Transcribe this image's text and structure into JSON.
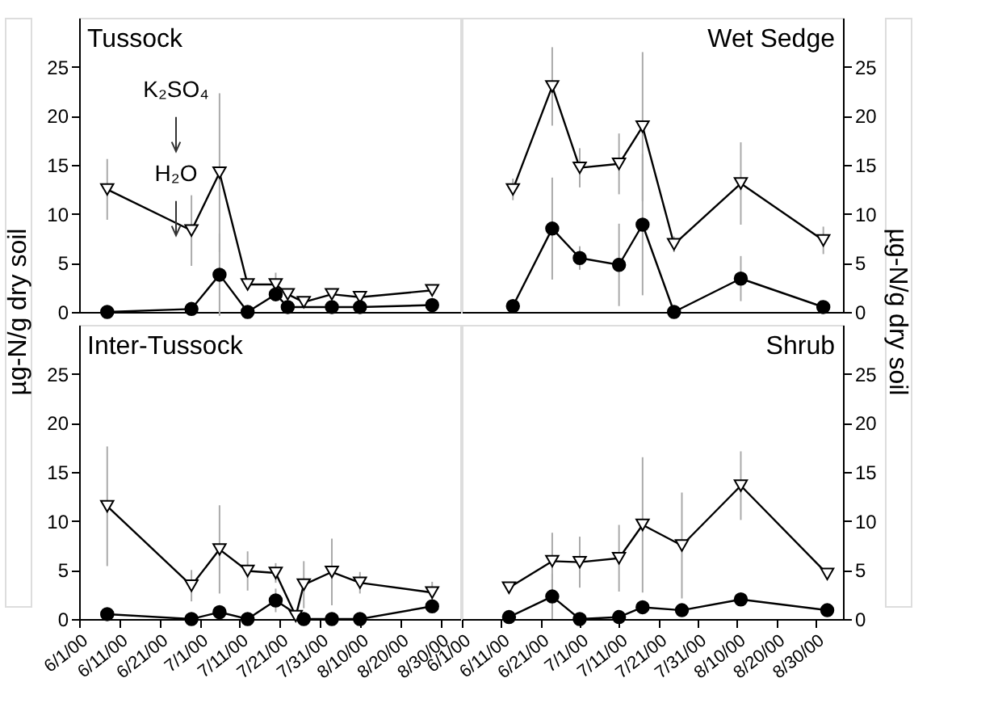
{
  "chart_data": [
    {
      "type": "line",
      "title": "Tussock",
      "ylabel": "µg-N/g dry soil",
      "tick_labels": "y",
      "xlim": [
        "2000-06-01",
        "2000-09-04"
      ],
      "ylim": [
        0,
        30
      ],
      "yticks": [
        0,
        5,
        10,
        15,
        20,
        25
      ],
      "annotations": [
        "K₂SO₄",
        "H₂O"
      ],
      "series": [
        {
          "color": "#000000",
          "marker": "triangle",
          "x": [
            "2000-06-08",
            "2000-06-29",
            "2000-07-06",
            "2000-07-13",
            "2000-07-20",
            "2000-07-23",
            "2000-07-27",
            "2000-08-03",
            "2000-08-10",
            "2000-08-28"
          ],
          "values": [
            12.5,
            8.3,
            14.2,
            2.8,
            2.8,
            1.8,
            1.0,
            1.8,
            1.5,
            2.2
          ],
          "errors": [
            3.1,
            3.6,
            8.1,
            null,
            1.2,
            null,
            null,
            null,
            null,
            null
          ]
        },
        {
          "color": "#000000",
          "marker": "circle",
          "x": [
            "2000-06-08",
            "2000-06-29",
            "2000-07-06",
            "2000-07-13",
            "2000-07-20",
            "2000-07-23",
            "2000-08-03",
            "2000-08-10",
            "2000-08-28"
          ],
          "values": [
            0,
            0.3,
            3.8,
            0,
            1.8,
            0.5,
            0.5,
            0.5,
            0.7
          ],
          "errors": [
            null,
            null,
            4.2,
            null,
            null,
            null,
            null,
            null,
            null
          ]
        }
      ]
    },
    {
      "type": "line",
      "title": "Wet Sedge",
      "ylabel": "µg-N/g dry soil",
      "tick_labels": "y",
      "xlim": [
        "2000-06-01",
        "2000-09-06"
      ],
      "ylim": [
        0,
        30
      ],
      "yticks": [
        0,
        5,
        10,
        15,
        20,
        25
      ],
      "series": [
        {
          "color": "#000000",
          "marker": "triangle",
          "x": [
            "2000-06-14",
            "2000-06-24",
            "2000-07-01",
            "2000-07-11",
            "2000-07-17",
            "2000-07-25",
            "2000-08-11",
            "2000-09-01"
          ],
          "values": [
            12.5,
            23.0,
            14.7,
            15.1,
            18.9,
            6.9,
            13.1,
            7.3
          ],
          "errors": [
            1.1,
            4.0,
            2.0,
            3.1,
            7.6,
            0.8,
            4.2,
            1.4
          ]
        },
        {
          "color": "#000000",
          "marker": "circle",
          "x": [
            "2000-06-14",
            "2000-06-24",
            "2000-07-01",
            "2000-07-11",
            "2000-07-17",
            "2000-07-25",
            "2000-08-11",
            "2000-09-01"
          ],
          "values": [
            0.6,
            8.5,
            5.5,
            4.8,
            8.9,
            0,
            3.4,
            0.5
          ],
          "errors": [
            null,
            5.2,
            1.2,
            4.2,
            7.2,
            null,
            2.3,
            null
          ]
        }
      ]
    },
    {
      "type": "line",
      "title": "Inter-Tussock",
      "xlim": [
        "2000-06-01",
        "2000-09-04"
      ],
      "ylim": [
        0,
        30
      ],
      "yticks": [
        0,
        5,
        10,
        15,
        20,
        25
      ],
      "xticks": [
        {
          "value": "2000-06-01",
          "label": "6/1/00"
        },
        {
          "value": "2000-06-11",
          "label": "6/11/00"
        },
        {
          "value": "2000-06-21",
          "label": "6/21/00"
        },
        {
          "value": "2000-07-01",
          "label": "7/1/00"
        },
        {
          "value": "2000-07-11",
          "label": "7/11/00"
        },
        {
          "value": "2000-07-21",
          "label": "7/21/00"
        },
        {
          "value": "2000-07-31",
          "label": "7/31/00"
        },
        {
          "value": "2000-08-10",
          "label": "8/10/00"
        },
        {
          "value": "2000-08-20",
          "label": "8/20/00"
        },
        {
          "value": "2000-08-30",
          "label": "8/30/00"
        }
      ],
      "series": [
        {
          "color": "#000000",
          "marker": "triangle",
          "x": [
            "2000-06-08",
            "2000-06-29",
            "2000-07-06",
            "2000-07-13",
            "2000-07-20",
            "2000-07-25",
            "2000-07-27",
            "2000-08-03",
            "2000-08-10",
            "2000-08-28"
          ],
          "values": [
            11.5,
            3.4,
            7.1,
            4.9,
            4.7,
            0.3,
            3.5,
            4.8,
            3.7,
            2.7
          ],
          "errors": [
            6.1,
            1.6,
            4.5,
            2.0,
            1.0,
            null,
            2.4,
            3.4,
            1.1,
            1.1
          ]
        },
        {
          "color": "#000000",
          "marker": "circle",
          "x": [
            "2000-06-08",
            "2000-06-29",
            "2000-07-06",
            "2000-07-13",
            "2000-07-20",
            "2000-07-27",
            "2000-08-03",
            "2000-08-10",
            "2000-08-28"
          ],
          "values": [
            0.5,
            0,
            0.7,
            0,
            1.9,
            0,
            0,
            0,
            1.3
          ],
          "errors": [
            null,
            null,
            null,
            null,
            1.2,
            null,
            null,
            null,
            null
          ]
        }
      ]
    },
    {
      "type": "line",
      "title": "Shrub",
      "xlim": [
        "2000-06-01",
        "2000-09-06"
      ],
      "ylim": [
        0,
        30
      ],
      "yticks": [
        0,
        5,
        10,
        15,
        20,
        25
      ],
      "xticks": [
        {
          "value": "2000-06-01",
          "label": "6/1/00"
        },
        {
          "value": "2000-06-11",
          "label": "6/11/00"
        },
        {
          "value": "2000-06-21",
          "label": "6/21/00"
        },
        {
          "value": "2000-07-01",
          "label": "7/1/00"
        },
        {
          "value": "2000-07-11",
          "label": "7/11/00"
        },
        {
          "value": "2000-07-21",
          "label": "7/21/00"
        },
        {
          "value": "2000-07-31",
          "label": "7/31/00"
        },
        {
          "value": "2000-08-10",
          "label": "8/10/00"
        },
        {
          "value": "2000-08-20",
          "label": "8/20/00"
        },
        {
          "value": "2000-08-30",
          "label": "8/30/00"
        }
      ],
      "series": [
        {
          "color": "#000000",
          "marker": "triangle",
          "x": [
            "2000-06-13",
            "2000-06-24",
            "2000-07-01",
            "2000-07-11",
            "2000-07-17",
            "2000-07-27",
            "2000-08-11",
            "2000-09-02"
          ],
          "values": [
            3.2,
            5.9,
            5.8,
            6.2,
            9.6,
            7.5,
            13.6,
            4.6
          ],
          "errors": [
            null,
            2.9,
            2.6,
            3.4,
            6.9,
            5.4,
            3.5,
            null
          ]
        },
        {
          "color": "#000000",
          "marker": "circle",
          "x": [
            "2000-06-13",
            "2000-06-24",
            "2000-07-01",
            "2000-07-11",
            "2000-07-17",
            "2000-07-27",
            "2000-08-11",
            "2000-09-02"
          ],
          "values": [
            0.2,
            2.3,
            0,
            0.2,
            1.2,
            0.9,
            2.0,
            0.9
          ],
          "errors": [
            null,
            2.3,
            null,
            null,
            null,
            null,
            null,
            null
          ]
        }
      ]
    }
  ]
}
